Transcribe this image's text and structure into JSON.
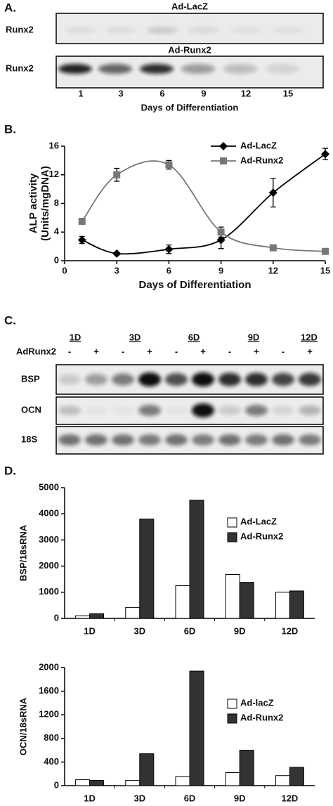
{
  "blot_a": {
    "label": "A.",
    "top_title": "Ad-LacZ",
    "bottom_title": "Ad-Runx2",
    "row_label_top": "Runx2",
    "row_label_bottom": "Runx2",
    "lanes": [
      "1",
      "3",
      "6",
      "9",
      "12",
      "15"
    ],
    "x_title": "Days of Differentiation"
  },
  "blot_c": {
    "label": "C.",
    "days": [
      "1D",
      "3D",
      "6D",
      "9D",
      "12D"
    ],
    "treatment": "AdRunx2",
    "signs": [
      "-",
      "+",
      "-",
      "+",
      "-",
      "+",
      "-",
      "+",
      "-",
      "+"
    ],
    "rows": [
      "BSP",
      "OCN",
      "18S"
    ]
  },
  "chart_data": [
    {
      "type": "line",
      "panel_label": "B.",
      "x": [
        1,
        3,
        6,
        9,
        12,
        15
      ],
      "xlim": [
        0,
        15
      ],
      "xticks": [
        0,
        3,
        6,
        9,
        12,
        15
      ],
      "ylim": [
        0,
        16
      ],
      "yticks": [
        0,
        4,
        8,
        12,
        16
      ],
      "x_label": "Days of Differentiation",
      "y_label": [
        "ALP activity",
        "(Units/mgDNA)"
      ],
      "series": [
        {
          "name": "Ad-LacZ",
          "color": "#000000",
          "marker": "diamond",
          "values": [
            2.9,
            1.0,
            1.6,
            2.9,
            9.5,
            14.9
          ],
          "errors": [
            0.5,
            0.2,
            0.6,
            1.2,
            2.0,
            0.8
          ]
        },
        {
          "name": "Ad-Runx2",
          "color": "#777777",
          "marker": "square",
          "values": [
            5.5,
            12.0,
            13.4,
            4.0,
            1.8,
            1.3
          ],
          "errors": [
            0.4,
            0.9,
            0.6,
            0.7,
            0.2,
            0.2
          ]
        }
      ]
    },
    {
      "type": "bar",
      "panel_label": "D.",
      "categories": [
        "1D",
        "3D",
        "6D",
        "9D",
        "12D"
      ],
      "ylim": [
        0,
        5000
      ],
      "yticks": [
        0,
        1000,
        2000,
        3000,
        4000,
        5000
      ],
      "y_label": "BSP/18sRNA",
      "series": [
        {
          "name": "Ad-LacZ",
          "color": "#ffffff",
          "values": [
            100,
            420,
            1250,
            1680,
            1000
          ]
        },
        {
          "name": "Ad-Runx2",
          "color": "#333333",
          "values": [
            180,
            3800,
            4520,
            1380,
            1050
          ]
        }
      ]
    },
    {
      "type": "bar",
      "categories": [
        "1D",
        "3D",
        "6D",
        "9D",
        "12D"
      ],
      "ylim": [
        0,
        2000
      ],
      "yticks": [
        0,
        400,
        800,
        1200,
        1600,
        2000
      ],
      "y_label": "OCN/18sRNA",
      "series": [
        {
          "name": "Ad-lacZ",
          "color": "#ffffff",
          "values": [
            100,
            90,
            150,
            220,
            170
          ]
        },
        {
          "name": "Ad-Runx2",
          "color": "#333333",
          "values": [
            90,
            540,
            1940,
            600,
            310
          ]
        }
      ]
    }
  ]
}
